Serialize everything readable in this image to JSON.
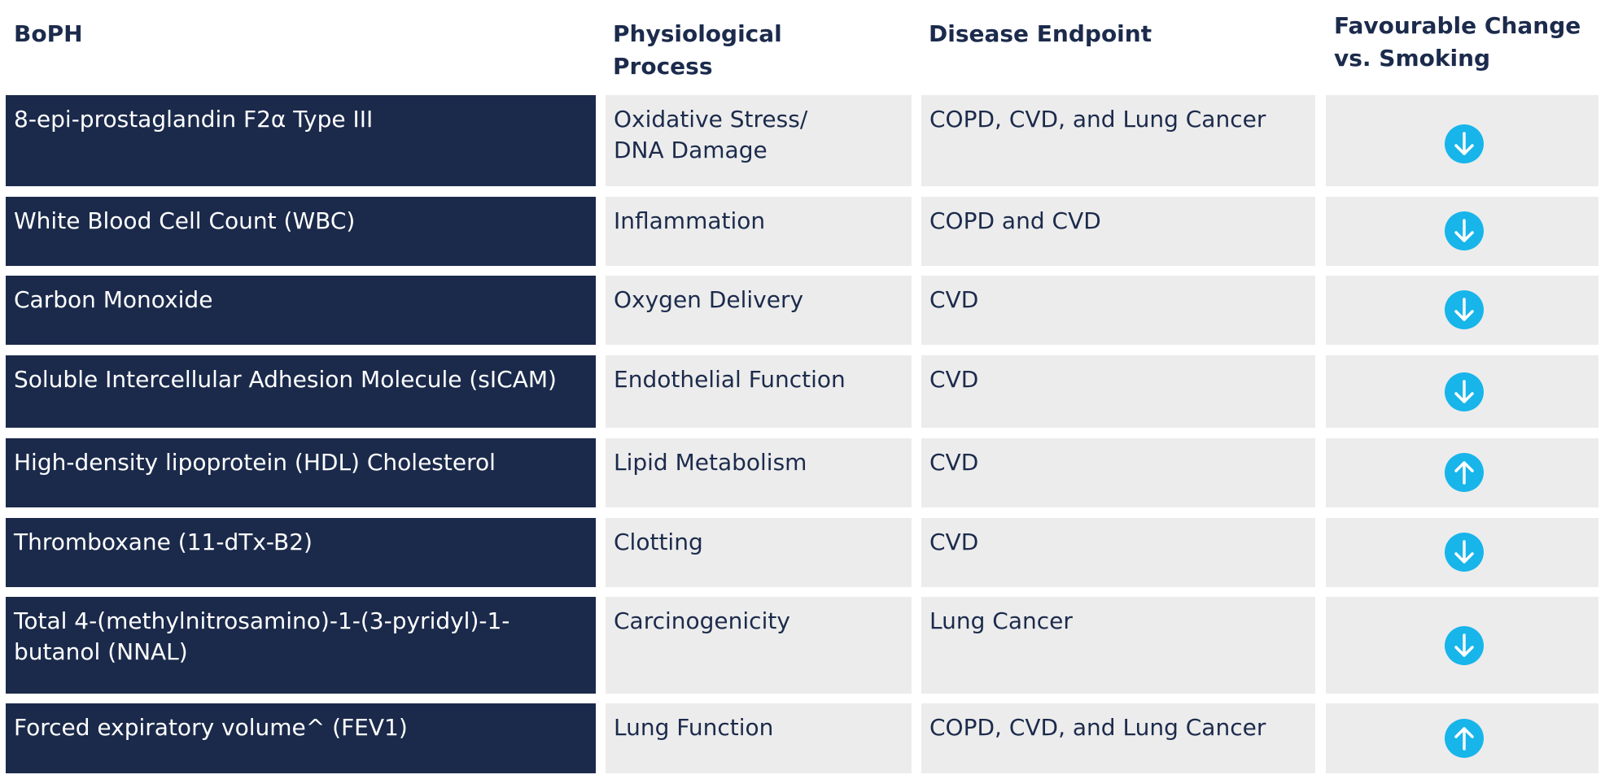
{
  "headers": {
    "bophLabel": "BoPH",
    "processLabel": "Physiological Process",
    "endpointLabel": "Disease Endpoint",
    "changeLabel": "Favourable Change vs. Smoking"
  },
  "accentColors": {
    "navy": "#1b2a4b",
    "cellGrey": "#ececec",
    "arrowBlue": "#17b5ea"
  },
  "rows": [
    {
      "boph": "8-epi-prostaglandin F2α Type III",
      "process": "Oxidative Stress/ DNA Damage",
      "endpoint": "COPD, CVD, and Lung Cancer",
      "direction": "down-arrow-icon"
    },
    {
      "boph": "White Blood Cell Count (WBC)",
      "process": "Inflammation",
      "endpoint": "COPD and CVD",
      "direction": "down-arrow-icon"
    },
    {
      "boph": "Carbon Monoxide",
      "process": "Oxygen Delivery",
      "endpoint": "CVD",
      "direction": "down-arrow-icon"
    },
    {
      "boph": "Soluble Intercellular Adhesion Molecule (sICAM)",
      "process": "Endothelial Function",
      "endpoint": "CVD",
      "direction": "down-arrow-icon"
    },
    {
      "boph": "High-density lipoprotein (HDL) Cholesterol",
      "process": "Lipid Metabolism",
      "endpoint": "CVD",
      "direction": "up-arrow-icon"
    },
    {
      "boph": "Thromboxane (11-dTx-B2)",
      "process": "Clotting",
      "endpoint": "CVD",
      "direction": "down-arrow-icon"
    },
    {
      "boph": "Total 4-(methylnitrosamino)-1-(3-pyridyl)-1-butanol (NNAL)",
      "process": "Carcinogenicity",
      "endpoint": "Lung Cancer",
      "direction": "down-arrow-icon"
    },
    {
      "boph": "Forced expiratory volume^ (FEV1)",
      "process": "Lung Function",
      "endpoint": "COPD, CVD, and Lung Cancer",
      "direction": "up-arrow-icon"
    }
  ]
}
